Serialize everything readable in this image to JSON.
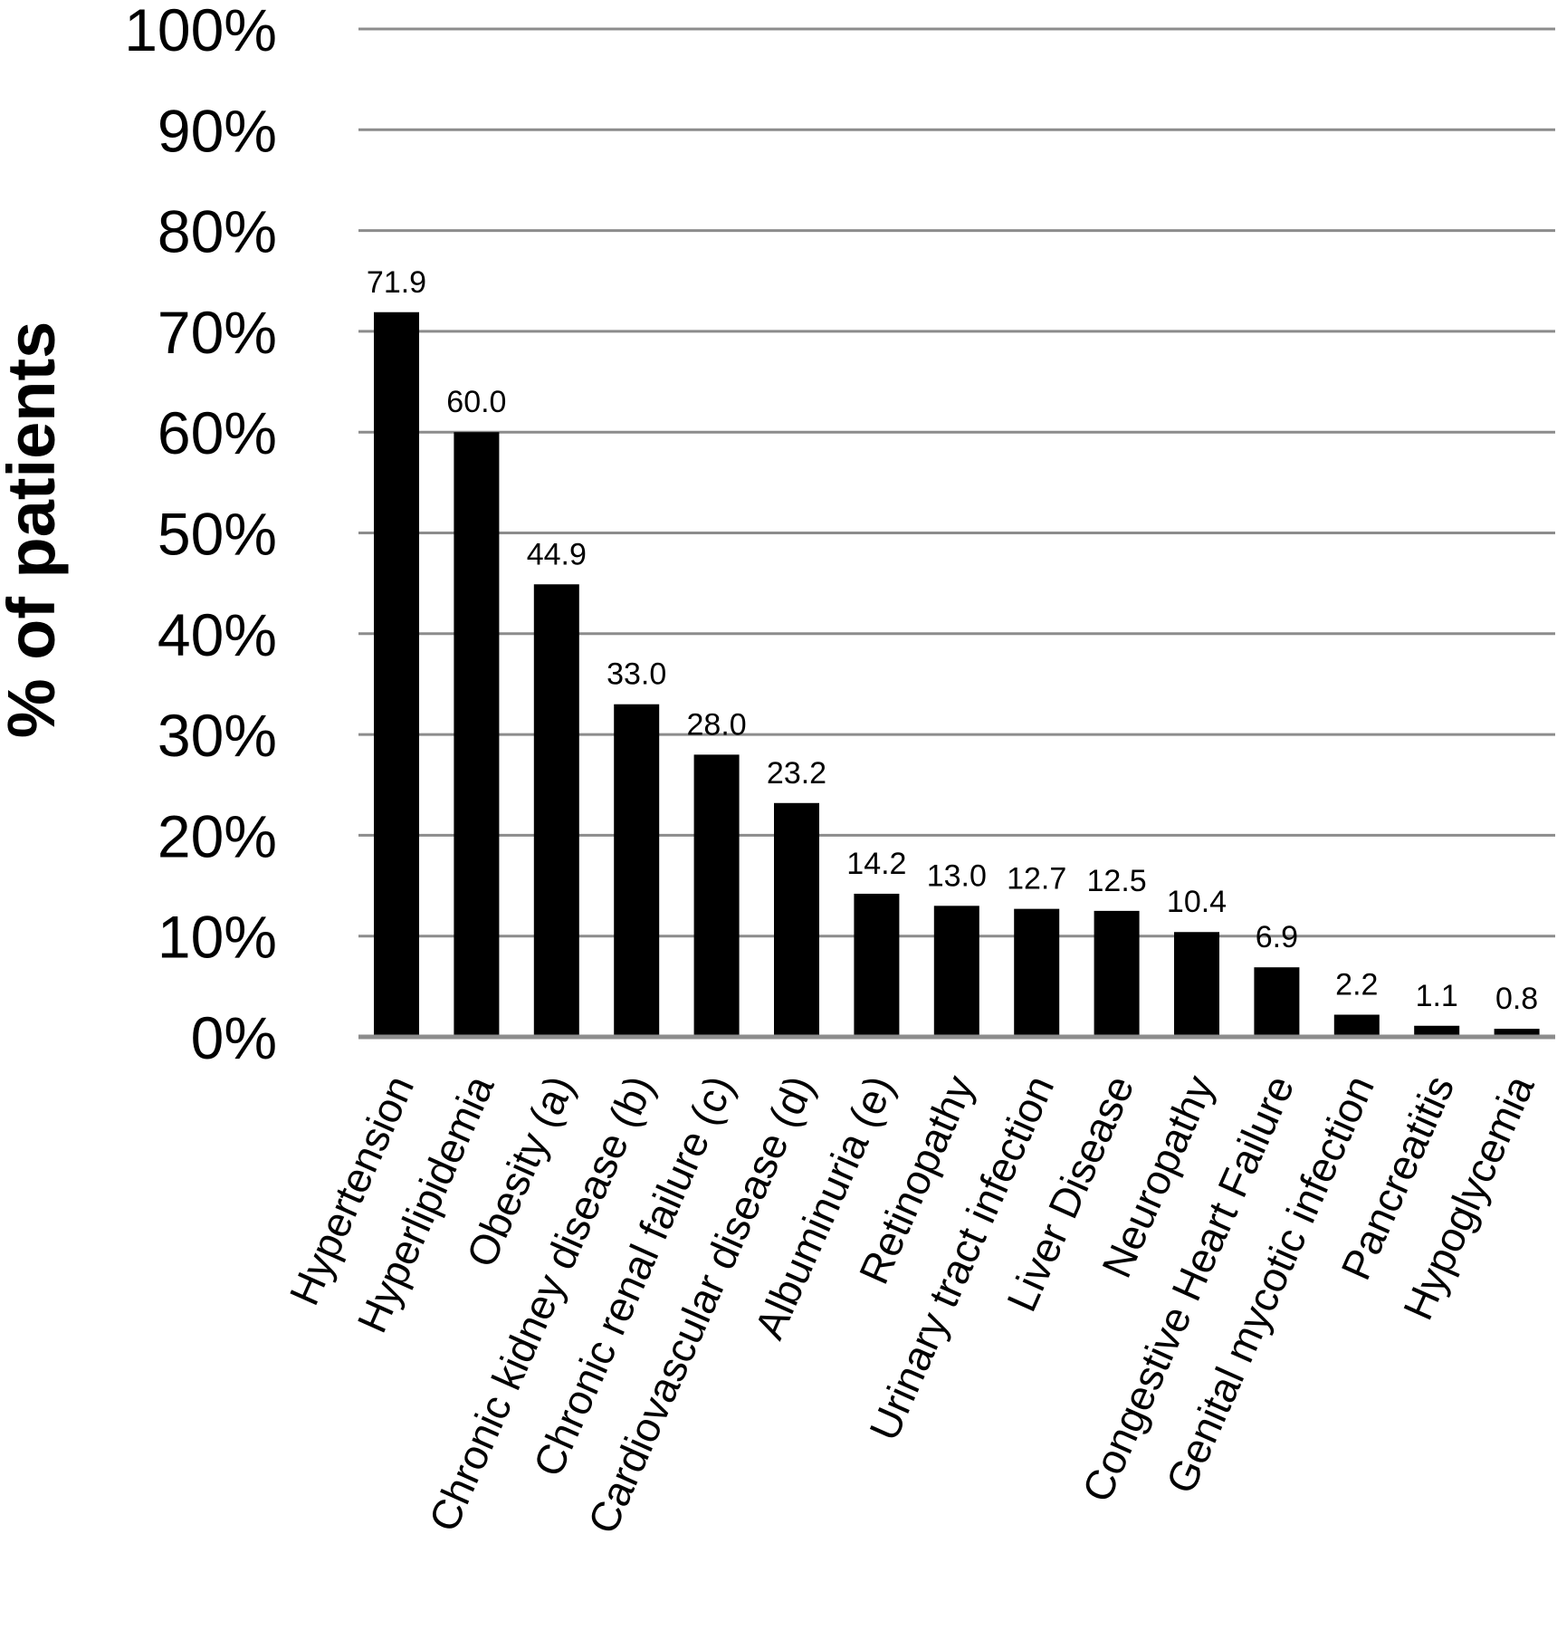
{
  "chart_data": {
    "type": "bar",
    "title": "",
    "xlabel": "",
    "ylabel": "% of patients",
    "ylim": [
      0,
      100
    ],
    "y_ticks": [
      0,
      10,
      20,
      30,
      40,
      50,
      60,
      70,
      80,
      90,
      100
    ],
    "y_tick_labels": [
      "0%",
      "10%",
      "20%",
      "30%",
      "40%",
      "50%",
      "60%",
      "70%",
      "80%",
      "90%",
      "100%"
    ],
    "grid": true,
    "legend": "none",
    "bar_color": "#000000",
    "grid_color": "#8c8c8c",
    "categories": [
      "Hypertension",
      "Hyperlipidemia",
      "Obesity (a)",
      "Chronic kidney disease (b)",
      "Chronic renal failure (c)",
      "Cardiovascular disease (d)",
      "Albuminuria (e)",
      "Retinopathy",
      "Urinary tract infection",
      "Liver Disease",
      "Neuropathy",
      "Congestive Heart Failure",
      "Genital mycotic infection",
      "Pancreatitis",
      "Hypoglycemia"
    ],
    "values": [
      71.9,
      60.0,
      44.9,
      33.0,
      28.0,
      23.2,
      14.2,
      13.0,
      12.7,
      12.5,
      10.4,
      6.9,
      2.2,
      1.1,
      0.8
    ],
    "data_labels": [
      "71.9",
      "60.0",
      "44.9",
      "33.0",
      "28.0",
      "23.2",
      "14.2",
      "13.0",
      "12.7",
      "12.5",
      "10.4",
      "6.9",
      "2.2",
      "1.1",
      "0.8"
    ]
  }
}
